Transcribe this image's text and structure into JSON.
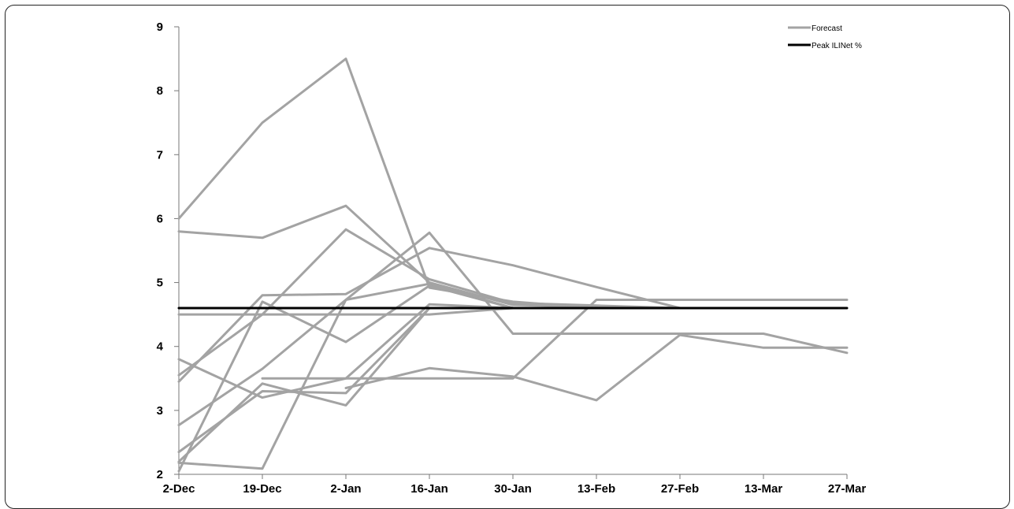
{
  "chart_data": {
    "type": "line",
    "title": "",
    "xlabel": "",
    "ylabel": "",
    "x": [
      "2-Dec",
      "19-Dec",
      "2-Jan",
      "16-Jan",
      "30-Jan",
      "13-Feb",
      "27-Feb",
      "13-Mar",
      "27-Mar"
    ],
    "ylim": [
      2,
      9
    ],
    "yticks": [
      2,
      3,
      4,
      5,
      6,
      7,
      8,
      9
    ],
    "grid": false,
    "legend_position": "top-right",
    "legend": [
      {
        "label": "Forecast",
        "color": "#a3a3a3"
      },
      {
        "label": "Peak ILINet %",
        "color": "#000000"
      }
    ],
    "series": [
      {
        "group": "Forecast",
        "points": [
          [
            "2-Dec",
            6.0
          ],
          [
            "19-Dec",
            7.5
          ],
          [
            "2-Jan",
            8.5
          ],
          [
            "16-Jan",
            4.92
          ],
          [
            "30-Jan",
            4.7
          ],
          [
            "13-Feb",
            4.6
          ]
        ]
      },
      {
        "group": "Forecast",
        "points": [
          [
            "2-Dec",
            5.8
          ],
          [
            "19-Dec",
            5.7
          ],
          [
            "2-Jan",
            6.2
          ],
          [
            "16-Jan",
            5.0
          ],
          [
            "30-Jan",
            4.65
          ],
          [
            "13-Feb",
            4.62
          ],
          [
            "27-Feb",
            4.6
          ]
        ]
      },
      {
        "group": "Forecast",
        "points": [
          [
            "2-Dec",
            3.55
          ],
          [
            "19-Dec",
            4.5
          ],
          [
            "2-Jan",
            5.83
          ],
          [
            "16-Jan",
            5.05
          ],
          [
            "30-Jan",
            4.68
          ],
          [
            "13-Feb",
            4.64
          ],
          [
            "27-Feb",
            4.6
          ]
        ]
      },
      {
        "group": "Forecast",
        "points": [
          [
            "2-Dec",
            3.45
          ],
          [
            "19-Dec",
            4.8
          ],
          [
            "2-Jan",
            4.82
          ],
          [
            "16-Jan",
            5.54
          ],
          [
            "30-Jan",
            5.27
          ],
          [
            "13-Feb",
            4.93
          ],
          [
            "27-Feb",
            4.6
          ]
        ]
      },
      {
        "group": "Forecast",
        "points": [
          [
            "2-Dec",
            4.5
          ],
          [
            "19-Dec",
            4.5
          ],
          [
            "2-Jan",
            4.5
          ],
          [
            "16-Jan",
            4.5
          ],
          [
            "30-Jan",
            4.6
          ]
        ]
      },
      {
        "group": "Forecast",
        "points": [
          [
            "2-Dec",
            2.77
          ],
          [
            "19-Dec",
            3.65
          ],
          [
            "2-Jan",
            4.73
          ],
          [
            "16-Jan",
            5.78
          ],
          [
            "30-Jan",
            4.2
          ],
          [
            "13-Feb",
            4.2
          ],
          [
            "27-Feb",
            4.2
          ],
          [
            "13-Mar",
            4.2
          ],
          [
            "27-Mar",
            3.9
          ]
        ]
      },
      {
        "group": "Forecast",
        "points": [
          [
            "2-Dec",
            3.8
          ],
          [
            "19-Dec",
            3.2
          ],
          [
            "2-Jan",
            3.5
          ],
          [
            "16-Jan",
            4.66
          ],
          [
            "30-Jan",
            4.6
          ]
        ]
      },
      {
        "group": "Forecast",
        "points": [
          [
            "2-Dec",
            2.35
          ],
          [
            "19-Dec",
            3.3
          ],
          [
            "2-Jan",
            3.27
          ],
          [
            "16-Jan",
            4.6
          ]
        ]
      },
      {
        "group": "Forecast",
        "points": [
          [
            "2-Dec",
            2.2
          ],
          [
            "19-Dec",
            3.42
          ],
          [
            "2-Jan",
            3.08
          ],
          [
            "16-Jan",
            4.6
          ]
        ]
      },
      {
        "group": "Forecast",
        "points": [
          [
            "2-Dec",
            2.18
          ],
          [
            "19-Dec",
            2.09
          ],
          [
            "2-Jan",
            4.73
          ],
          [
            "16-Jan",
            4.98
          ],
          [
            "30-Jan",
            4.6
          ]
        ]
      },
      {
        "group": "Forecast",
        "points": [
          [
            "2-Dec",
            2.05
          ],
          [
            "19-Dec",
            4.7
          ],
          [
            "2-Jan",
            4.07
          ],
          [
            "16-Jan",
            4.95
          ],
          [
            "30-Jan",
            4.6
          ]
        ]
      },
      {
        "group": "Forecast",
        "points": [
          [
            "19-Dec",
            3.5
          ],
          [
            "2-Jan",
            3.5
          ],
          [
            "16-Jan",
            3.5
          ],
          [
            "30-Jan",
            3.5
          ],
          [
            "13-Feb",
            4.73
          ],
          [
            "27-Feb",
            4.73
          ],
          [
            "13-Mar",
            4.73
          ],
          [
            "27-Mar",
            4.73
          ]
        ]
      },
      {
        "group": "Forecast",
        "points": [
          [
            "2-Jan",
            3.35
          ],
          [
            "16-Jan",
            3.66
          ],
          [
            "30-Jan",
            3.53
          ],
          [
            "13-Feb",
            3.16
          ],
          [
            "27-Feb",
            4.18
          ],
          [
            "13-Mar",
            3.98
          ],
          [
            "27-Mar",
            3.98
          ]
        ]
      },
      {
        "group": "Peak ILINet %",
        "points": [
          [
            "2-Dec",
            4.6
          ],
          [
            "27-Mar",
            4.6
          ]
        ]
      }
    ]
  }
}
